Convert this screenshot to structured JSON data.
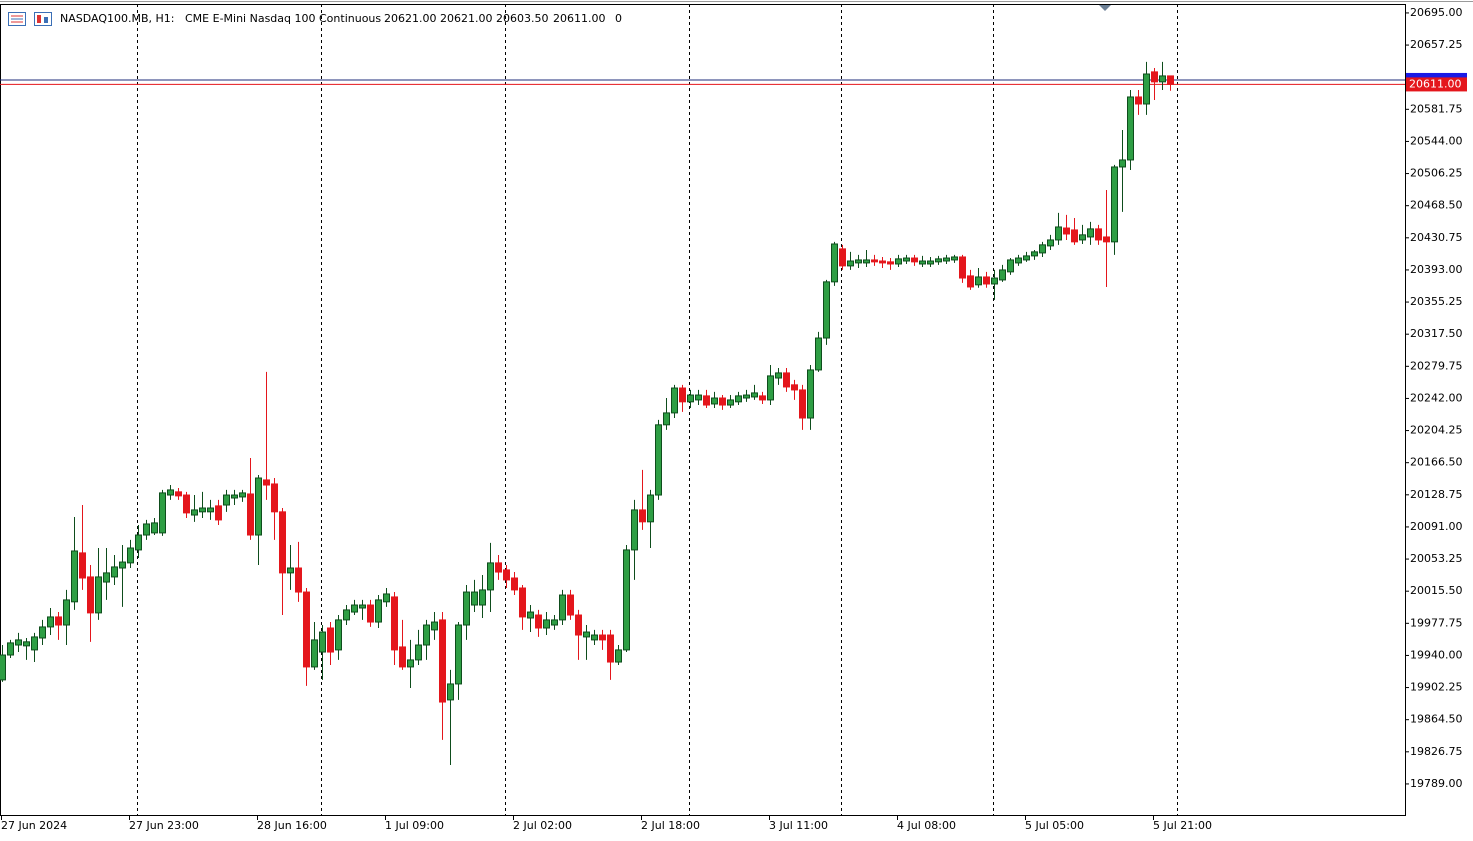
{
  "header": {
    "symbol": "NASDAQ100.MB, H1:",
    "description": "CME E-Mini Nasdaq 100 Continuous",
    "ohlc": [
      "20621.00",
      "20621.00",
      "20603.50",
      "20611.00"
    ],
    "volume": 0
  },
  "chart_data": {
    "type": "candlestick",
    "categories": [
      "27 Jun 2024",
      null,
      null,
      null,
      null,
      null,
      null,
      null,
      null,
      null,
      null,
      null,
      null,
      null,
      null,
      null,
      "27 Jun 23:00",
      null,
      null,
      null,
      null,
      null,
      null,
      null,
      null,
      null,
      null,
      null,
      null,
      null,
      null,
      null,
      "28 Jun 16:00",
      null,
      null,
      null,
      null,
      null,
      null,
      null,
      null,
      null,
      null,
      null,
      null,
      null,
      null,
      null,
      "1 Jul 09:00",
      null,
      null,
      null,
      null,
      null,
      null,
      null,
      null,
      null,
      null,
      null,
      null,
      null,
      null,
      null,
      "2 Jul 02:00",
      null,
      null,
      null,
      null,
      null,
      null,
      null,
      null,
      null,
      null,
      null,
      null,
      null,
      null,
      null,
      "2 Jul 18:00",
      null,
      null,
      null,
      null,
      null,
      null,
      null,
      null,
      null,
      null,
      null,
      null,
      null,
      null,
      null,
      "3 Jul 11:00",
      null,
      null,
      null,
      null,
      null,
      null,
      null,
      null,
      null,
      null,
      null,
      null,
      null,
      null,
      null,
      "4 Jul 08:00",
      null,
      null,
      null,
      null,
      null,
      null,
      null,
      null,
      null,
      null,
      null,
      null,
      null,
      null,
      null,
      "5 Jul 05:00",
      null,
      null,
      null,
      null,
      null,
      null,
      null,
      null,
      null,
      null,
      null,
      null,
      null,
      null,
      null,
      "5 Jul 21:00",
      null,
      null
    ],
    "open": [
      19911.25,
      19940.5,
      19952.25,
      19951.25,
      19946.5,
      19960.5,
      19973.5,
      19985.25,
      19975.75,
      20003,
      20060.5,
      20032.25,
      19990,
      20026.25,
      20032.25,
      20042.75,
      20048.75,
      20064,
      20081.5,
      20084,
      20084,
      20128.5,
      20132.25,
      20128.5,
      20105,
      20108.75,
      20108.75,
      20115.75,
      20116.75,
      20125,
      20126.25,
      20129.75,
      20081.5,
      20146.25,
      20141.5,
      20108.75,
      20037,
      20042.75,
      20014.5,
      19926.5,
      19944,
      19972.25,
      19946.5,
      19981.75,
      19991,
      19995.75,
      19999.25,
      19979.25,
      20003,
      20008.75,
      19950,
      19926.5,
      19934.75,
      19952.25,
      19970,
      19981.75,
      19887.75,
      19906.5,
      19975.75,
      19999.25,
      19999.25,
      20017,
      20048.75,
      20040.5,
      20031,
      20019.25,
      19984,
      19987.5,
      19972.25,
      19975.75,
      19981.75,
      20011,
      19987.5,
      19961.75,
      19958.25,
      19964,
      19964,
      19932.25,
      19946.5,
      20064,
      20111,
      20097,
      20128.5,
      20211,
      20225,
      20254.25,
      20238,
      20240.25,
      20245,
      20235.5,
      20242.5,
      20234.25,
      20238,
      20242.5,
      20243.75,
      20245,
      20240.25,
      20266,
      20272,
      20258,
      20252,
      20219,
      20275.5,
      20313,
      20379,
      20417.75,
      20397.75,
      20401.25,
      20401.25,
      20404.75,
      20403.5,
      20402.5,
      20400,
      20403.5,
      20407,
      20400,
      20400,
      20402.5,
      20403.5,
      20404.75,
      20408.25,
      20386,
      20375.5,
      20384.75,
      20376.5,
      20381.25,
      20390.75,
      20401.25,
      20404.75,
      20409.5,
      20413,
      20421.25,
      20428.25,
      20442.25,
      20440,
      20428.25,
      20431.75,
      20441.25,
      20431.75,
      20426,
      20514,
      20522.25,
      20596.25,
      20588,
      20625.75,
      20614,
      20621
    ],
    "high": [
      19952.25,
      19958.25,
      19966.5,
      19960.5,
      19966.5,
      19981.75,
      19995.75,
      19991,
      20017,
      20102.75,
      20116.75,
      20046.25,
      20066.25,
      20066.25,
      20058,
      20069.75,
      20075.75,
      20093.25,
      20099.25,
      20101.5,
      20134.5,
      20140.25,
      20136.75,
      20132.25,
      20128.5,
      20132.25,
      20122.75,
      20122.75,
      20134.5,
      20134.5,
      20134.5,
      20172,
      20152,
      20273.25,
      20148.5,
      20113.25,
      20069.75,
      20073.5,
      20019.25,
      19979.25,
      19975.75,
      19979.25,
      19987.5,
      19999.25,
      20005.25,
      20005.25,
      20005.25,
      20011,
      20019.25,
      20014.5,
      19981.75,
      19958.25,
      19970,
      19981.75,
      19991,
      19991,
      19923,
      19979.25,
      20022.75,
      20028.75,
      20034.5,
      20072.25,
      20058,
      20046.25,
      20038,
      20022.75,
      19999.25,
      19993.5,
      19991,
      19987.5,
      20017,
      20017,
      19993.5,
      19975.75,
      19970,
      19970,
      19970,
      19952.25,
      20069.75,
      20122.75,
      20158,
      20134.5,
      20216.75,
      20242.5,
      20258,
      20258,
      20252,
      20252,
      20252,
      20249.75,
      20246,
      20246,
      20249.75,
      20252,
      20258,
      20249.75,
      20281.25,
      20277.75,
      20277.75,
      20263.75,
      20258,
      20281.25,
      20320.25,
      20381.25,
      20426,
      20422.5,
      20414.25,
      20410.75,
      20416.5,
      20410.75,
      20408.25,
      20407,
      20410.75,
      20410.75,
      20410.75,
      20409.5,
      20408.25,
      20409.5,
      20410.75,
      20410.75,
      20410.75,
      20393,
      20395.25,
      20390.75,
      20393,
      20399,
      20407,
      20410.75,
      20414.25,
      20416.5,
      20426,
      20434.25,
      20460,
      20457.75,
      20454,
      20446,
      20449.5,
      20446,
      20487,
      20516.5,
      20557.5,
      20604.5,
      20604.5,
      20637.5,
      20630.25,
      20637.5,
      20621
    ],
    "low": [
      19909,
      19937,
      19944,
      19934.75,
      19932.25,
      19952.25,
      19964,
      19958.25,
      19952.25,
      19993.5,
      20017,
      19956,
      19981.75,
      20005.25,
      20022.75,
      19997,
      20042.75,
      20054.5,
      20075.75,
      20081.5,
      20080.5,
      20122.75,
      20122.75,
      20101.5,
      20097,
      20101.5,
      20099.25,
      20093.25,
      20108.75,
      20116.75,
      20120.5,
      20075.75,
      20046.25,
      20122.75,
      20075.75,
      19987.5,
      20017,
      20003,
      19904.25,
      19923,
      19911.25,
      19928.75,
      19934.75,
      19975.75,
      19987.5,
      19981.75,
      19973.5,
      19972.25,
      19997,
      19928.75,
      19923,
      19901.75,
      19928.75,
      19934.75,
      19958.25,
      19840.75,
      19811.25,
      19887.75,
      19958.25,
      19991,
      19984,
      19991,
      20028.75,
      20019.25,
      20011,
      19970,
      19967.5,
      19961.75,
      19964,
      19970,
      19975.75,
      19981.75,
      19934.75,
      19934.75,
      19952.25,
      19946.5,
      19911.25,
      19928.75,
      19944,
      20028.75,
      20087.5,
      20066.25,
      20122.75,
      20205,
      20219,
      20226.25,
      20230.75,
      20234.25,
      20230.75,
      20230.75,
      20228.5,
      20230.75,
      20234.25,
      20238,
      20240.25,
      20235.5,
      20234.25,
      20258,
      20249.75,
      20240.25,
      20205,
      20205,
      20273.25,
      20305,
      20374.25,
      20393,
      20393,
      20395.25,
      20396.5,
      20397.75,
      20395.25,
      20393,
      20396.5,
      20400,
      20397.75,
      20396.5,
      20396.5,
      20399,
      20400,
      20401.25,
      20377.75,
      20369.5,
      20372,
      20372,
      20357.75,
      20379,
      20387.25,
      20397.75,
      20402.5,
      20404.75,
      20408.25,
      20416.5,
      20422.5,
      20428.25,
      20422.5,
      20423.5,
      20422.5,
      20422.5,
      20373,
      20410.75,
      20461.25,
      20510.5,
      20575.25,
      20575.25,
      20592.75,
      20604.5,
      20603.5
    ],
    "close": [
      19940.5,
      19954.75,
      19958.25,
      19956,
      19961.75,
      19973.5,
      19985.25,
      19975.75,
      20005.25,
      20062.75,
      20031,
      19990,
      20032.25,
      20037,
      20044,
      20049.75,
      20066.25,
      20081.5,
      20094.5,
      20095.75,
      20131,
      20134.5,
      20127.5,
      20107.5,
      20111,
      20113.25,
      20113.25,
      20099.25,
      20128.5,
      20128.5,
      20131,
      20081.5,
      20148.5,
      20140.25,
      20108.75,
      20037,
      20042.75,
      20014.5,
      19926.5,
      19958.25,
      19967.5,
      19944,
      19981.75,
      19993.5,
      19999.25,
      19999.25,
      19979.25,
      20005.25,
      20012.25,
      19946.5,
      19926.5,
      19934.75,
      19952.25,
      19975.75,
      19979.25,
      19885.25,
      19906.5,
      19975.75,
      20014.5,
      20014.5,
      20017,
      20048.75,
      20038,
      20028.75,
      20017,
      19985.25,
      19991,
      19972.25,
      19981.75,
      19981.75,
      20011,
      19987.5,
      19964,
      19967.5,
      19964,
      19958.25,
      19932.25,
      19946.5,
      20064,
      20111,
      20097,
      20128.5,
      20211,
      20225,
      20254.25,
      20238,
      20246,
      20246,
      20234.25,
      20242.5,
      20234.25,
      20240.25,
      20245,
      20246,
      20248.5,
      20240.25,
      20268.5,
      20272,
      20255.5,
      20252,
      20219,
      20275.5,
      20313,
      20379,
      20423.5,
      20397.75,
      20403.5,
      20404.75,
      20404.75,
      20402.5,
      20401.25,
      20400,
      20406,
      20407,
      20402.5,
      20403.5,
      20403.5,
      20406,
      20407,
      20408.25,
      20383.5,
      20373,
      20384.75,
      20376.5,
      20383.5,
      20393,
      20404.75,
      20407,
      20409.5,
      20414.25,
      20422.5,
      20428.25,
      20443.5,
      20435.25,
      20426,
      20434.25,
      20441.25,
      20428.25,
      20426,
      20514,
      20522.25,
      20596.25,
      20588,
      20623.25,
      20614,
      20621,
      20611
    ],
    "up_color": "#2e9e44",
    "up_edge": "#0e4d1c",
    "down_color": "#e4161c",
    "ylim": [
      19752.5,
      20705.5
    ],
    "yticks": [
      {
        "value": 20695,
        "label": "20695.00"
      },
      {
        "value": 20657.25,
        "label": "20657.25"
      },
      {
        "value": 20581.75,
        "label": "20581.75"
      },
      {
        "value": 20544,
        "label": "20544.00"
      },
      {
        "value": 20506.25,
        "label": "20506.25"
      },
      {
        "value": 20468.5,
        "label": "20468.50"
      },
      {
        "value": 20430.75,
        "label": "20430.75"
      },
      {
        "value": 20393,
        "label": "20393.00"
      },
      {
        "value": 20355.25,
        "label": "20355.25"
      },
      {
        "value": 20317.5,
        "label": "20317.50"
      },
      {
        "value": 20279.75,
        "label": "20279.75"
      },
      {
        "value": 20242,
        "label": "20242.00"
      },
      {
        "value": 20204.25,
        "label": "20204.25"
      },
      {
        "value": 20166.5,
        "label": "20166.50"
      },
      {
        "value": 20128.75,
        "label": "20128.75"
      },
      {
        "value": 20091,
        "label": "20091.00"
      },
      {
        "value": 20053.25,
        "label": "20053.25"
      },
      {
        "value": 20015.5,
        "label": "20015.50"
      },
      {
        "value": 19977.75,
        "label": "19977.75"
      },
      {
        "value": 19940,
        "label": "19940.00"
      },
      {
        "value": 19902.25,
        "label": "19902.25"
      },
      {
        "value": 19864.5,
        "label": "19864.50"
      },
      {
        "value": 19826.75,
        "label": "19826.75"
      },
      {
        "value": 19789,
        "label": "19789.00"
      }
    ],
    "bid_line": {
      "value": 20611,
      "label": "20611.00",
      "color": "#e4161c"
    },
    "ask_line": {
      "value": 20616.25,
      "color": "#1c2b7a",
      "label_color": "#1a1ae6"
    }
  }
}
